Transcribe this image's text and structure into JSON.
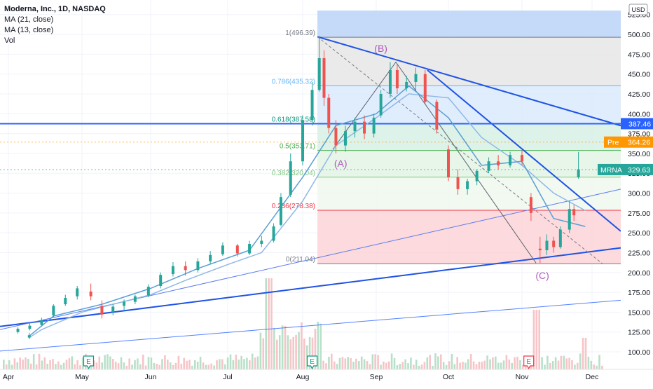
{
  "legend": {
    "title": "Moderna, Inc., 1D, NASDAQ",
    "ma21": "MA (21, close)",
    "ma13": "MA (13, close)",
    "vol": "Vol"
  },
  "currency": "USD",
  "chart_data": {
    "type": "candlestick",
    "symbol": "MRNA",
    "y_ticks": [
      100,
      125,
      150,
      175,
      200,
      225,
      250,
      275,
      300,
      325,
      350,
      375,
      400,
      425,
      450,
      475,
      500,
      525
    ],
    "x_ticks": [
      "Apr",
      "May",
      "Jun",
      "Jul",
      "Aug",
      "Sep",
      "Oct",
      "Nov",
      "Dec"
    ],
    "last_price": {
      "label": "MRNA",
      "value": "329.63",
      "color": "#26a69a"
    },
    "premarket": {
      "label": "Pre",
      "value": "364.26",
      "color": "#ff9800"
    },
    "horizontal_line": {
      "value": 387.46,
      "label": "387.46",
      "color": "#2962ff"
    },
    "fib_retracement": {
      "levels": [
        {
          "ratio": "1",
          "price": "496.39",
          "label": "1(496.39)",
          "color": "#787b86"
        },
        {
          "ratio": "0.786",
          "price": "435.32",
          "label": "0.786(435.32)",
          "color": "#64b5f6"
        },
        {
          "ratio": "0.618",
          "price": "387.58",
          "label": "0.618(387.58)",
          "color": "#089981"
        },
        {
          "ratio": "0.5",
          "price": "353.71",
          "label": "0.5(353.71)",
          "color": "#4caf50"
        },
        {
          "ratio": "0.382",
          "price": "320.04",
          "label": "0.382(320.04)",
          "color": "#81c784"
        },
        {
          "ratio": "0.236",
          "price": "278.38",
          "label": "0.236(278.38)",
          "color": "#f23645"
        },
        {
          "ratio": "0",
          "price": "211.04",
          "label": "0(211.04)",
          "color": "#787b86"
        }
      ]
    },
    "wave_labels": [
      {
        "text": "(A)",
        "x": "Aug 17",
        "y": 333
      },
      {
        "text": "(B)",
        "x": "Sep 3",
        "y": 478
      },
      {
        "text": "(C)",
        "x": "Nov 10",
        "y": 192
      }
    ],
    "earnings_markers": [
      {
        "x": "May 4",
        "label": "E",
        "color": "#089981"
      },
      {
        "x": "Aug 5",
        "label": "E",
        "color": "#089981"
      },
      {
        "x": "Nov 4",
        "label": "E",
        "color": "#f23645"
      }
    ],
    "series": [
      {
        "name": "MRNA",
        "type": "ohlc",
        "points": [
          {
            "d": "Mar 31",
            "o": 118,
            "h": 124,
            "l": 116,
            "c": 121
          },
          {
            "d": "Apr 5",
            "o": 125,
            "h": 131,
            "l": 123,
            "c": 129
          },
          {
            "d": "Apr 10",
            "o": 129,
            "h": 137,
            "l": 127,
            "c": 133
          },
          {
            "d": "Apr 15",
            "o": 134,
            "h": 143,
            "l": 132,
            "c": 140
          },
          {
            "d": "Apr 20",
            "o": 146,
            "h": 160,
            "l": 144,
            "c": 158
          },
          {
            "d": "Apr 25",
            "o": 160,
            "h": 172,
            "l": 158,
            "c": 168
          },
          {
            "d": "Apr 30",
            "o": 170,
            "h": 183,
            "l": 166,
            "c": 180
          },
          {
            "d": "May 5",
            "o": 176,
            "h": 186,
            "l": 165,
            "c": 170
          },
          {
            "d": "May 10",
            "o": 158,
            "h": 165,
            "l": 142,
            "c": 147
          },
          {
            "d": "May 15",
            "o": 150,
            "h": 160,
            "l": 146,
            "c": 157
          },
          {
            "d": "May 20",
            "o": 158,
            "h": 166,
            "l": 152,
            "c": 163
          },
          {
            "d": "May 25",
            "o": 163,
            "h": 172,
            "l": 160,
            "c": 170
          },
          {
            "d": "May 31",
            "o": 171,
            "h": 185,
            "l": 169,
            "c": 182
          },
          {
            "d": "Jun 5",
            "o": 183,
            "h": 200,
            "l": 180,
            "c": 197
          },
          {
            "d": "Jun 10",
            "o": 198,
            "h": 213,
            "l": 195,
            "c": 208
          },
          {
            "d": "Jun 15",
            "o": 208,
            "h": 214,
            "l": 196,
            "c": 203
          },
          {
            "d": "Jun 20",
            "o": 203,
            "h": 218,
            "l": 200,
            "c": 214
          },
          {
            "d": "Jun 25",
            "o": 214,
            "h": 227,
            "l": 210,
            "c": 222
          },
          {
            "d": "Jun 30",
            "o": 223,
            "h": 238,
            "l": 221,
            "c": 234
          },
          {
            "d": "Jul 5",
            "o": 234,
            "h": 236,
            "l": 220,
            "c": 224
          },
          {
            "d": "Jul 10",
            "o": 224,
            "h": 240,
            "l": 222,
            "c": 236
          },
          {
            "d": "Jul 15",
            "o": 236,
            "h": 246,
            "l": 232,
            "c": 240
          },
          {
            "d": "Jul 20",
            "o": 240,
            "h": 262,
            "l": 238,
            "c": 258
          },
          {
            "d": "Jul 23",
            "o": 260,
            "h": 300,
            "l": 258,
            "c": 295
          },
          {
            "d": "Jul 27",
            "o": 298,
            "h": 350,
            "l": 295,
            "c": 340
          },
          {
            "d": "Aug 1",
            "o": 340,
            "h": 398,
            "l": 335,
            "c": 392
          },
          {
            "d": "Aug 5",
            "o": 392,
            "h": 440,
            "l": 385,
            "c": 430
          },
          {
            "d": "Aug 8",
            "o": 430,
            "h": 498,
            "l": 428,
            "c": 470
          },
          {
            "d": "Aug 10",
            "o": 470,
            "h": 480,
            "l": 410,
            "c": 420
          },
          {
            "d": "Aug 12",
            "o": 420,
            "h": 425,
            "l": 375,
            "c": 382
          },
          {
            "d": "Aug 15",
            "o": 382,
            "h": 392,
            "l": 350,
            "c": 360
          },
          {
            "d": "Aug 19",
            "o": 360,
            "h": 385,
            "l": 352,
            "c": 378
          },
          {
            "d": "Aug 23",
            "o": 378,
            "h": 395,
            "l": 370,
            "c": 390
          },
          {
            "d": "Aug 27",
            "o": 390,
            "h": 398,
            "l": 368,
            "c": 375
          },
          {
            "d": "Aug 31",
            "o": 375,
            "h": 400,
            "l": 370,
            "c": 395
          },
          {
            "d": "Sep 3",
            "o": 398,
            "h": 430,
            "l": 395,
            "c": 425
          },
          {
            "d": "Sep 7",
            "o": 425,
            "h": 465,
            "l": 420,
            "c": 455
          },
          {
            "d": "Sep 10",
            "o": 455,
            "h": 462,
            "l": 425,
            "c": 432
          },
          {
            "d": "Sep 14",
            "o": 432,
            "h": 448,
            "l": 428,
            "c": 440
          },
          {
            "d": "Sep 18",
            "o": 440,
            "h": 458,
            "l": 430,
            "c": 450
          },
          {
            "d": "Sep 22",
            "o": 450,
            "h": 455,
            "l": 412,
            "c": 415
          },
          {
            "d": "Sep 27",
            "o": 415,
            "h": 418,
            "l": 375,
            "c": 380
          },
          {
            "d": "Oct 1",
            "o": 355,
            "h": 360,
            "l": 315,
            "c": 320
          },
          {
            "d": "Oct 5",
            "o": 320,
            "h": 330,
            "l": 298,
            "c": 305
          },
          {
            "d": "Oct 9",
            "o": 305,
            "h": 318,
            "l": 298,
            "c": 315
          },
          {
            "d": "Oct 13",
            "o": 315,
            "h": 330,
            "l": 310,
            "c": 328
          },
          {
            "d": "Oct 18",
            "o": 328,
            "h": 345,
            "l": 325,
            "c": 340
          },
          {
            "d": "Oct 22",
            "o": 340,
            "h": 348,
            "l": 330,
            "c": 335
          },
          {
            "d": "Oct 27",
            "o": 335,
            "h": 352,
            "l": 332,
            "c": 348
          },
          {
            "d": "Nov 1",
            "o": 348,
            "h": 354,
            "l": 335,
            "c": 340
          },
          {
            "d": "Nov 5",
            "o": 295,
            "h": 300,
            "l": 265,
            "c": 275
          },
          {
            "d": "Nov 9",
            "o": 230,
            "h": 245,
            "l": 212,
            "c": 228
          },
          {
            "d": "Nov 12",
            "o": 228,
            "h": 248,
            "l": 222,
            "c": 240
          },
          {
            "d": "Nov 15",
            "o": 240,
            "h": 245,
            "l": 225,
            "c": 232
          },
          {
            "d": "Nov 18",
            "o": 232,
            "h": 258,
            "l": 230,
            "c": 254
          },
          {
            "d": "Nov 22",
            "o": 254,
            "h": 290,
            "l": 250,
            "c": 280
          },
          {
            "d": "Nov 24",
            "o": 280,
            "h": 285,
            "l": 265,
            "c": 272
          },
          {
            "d": "Nov 26",
            "o": 320,
            "h": 352,
            "l": 318,
            "c": 330
          }
        ]
      },
      {
        "name": "MA (21, close)",
        "color": "#90b8e8",
        "points": [
          {
            "d": "Mar 31",
            "v": 118
          },
          {
            "d": "Apr 15",
            "v": 128
          },
          {
            "d": "May 1",
            "v": 150
          },
          {
            "d": "May 15",
            "v": 160
          },
          {
            "d": "Jun 1",
            "v": 172
          },
          {
            "d": "Jun 15",
            "v": 190
          },
          {
            "d": "Jul 1",
            "v": 210
          },
          {
            "d": "Jul 15",
            "v": 225
          },
          {
            "d": "Aug 1",
            "v": 290
          },
          {
            "d": "Aug 15",
            "v": 360
          },
          {
            "d": "Sep 1",
            "v": 395
          },
          {
            "d": "Sep 15",
            "v": 425
          },
          {
            "d": "Oct 1",
            "v": 420
          },
          {
            "d": "Oct 15",
            "v": 370
          },
          {
            "d": "Nov 1",
            "v": 335
          },
          {
            "d": "Nov 15",
            "v": 300
          },
          {
            "d": "Nov 29",
            "v": 278
          }
        ]
      },
      {
        "name": "MA (13, close)",
        "color": "#5a9fd4",
        "points": [
          {
            "d": "Mar 31",
            "v": 120
          },
          {
            "d": "Apr 20",
            "v": 145
          },
          {
            "d": "May 10",
            "v": 160
          },
          {
            "d": "Jun 1",
            "v": 180
          },
          {
            "d": "Jun 20",
            "v": 205
          },
          {
            "d": "Jul 10",
            "v": 228
          },
          {
            "d": "Aug 1",
            "v": 320
          },
          {
            "d": "Aug 15",
            "v": 385
          },
          {
            "d": "Sep 1",
            "v": 400
          },
          {
            "d": "Sep 15",
            "v": 435
          },
          {
            "d": "Oct 1",
            "v": 395
          },
          {
            "d": "Oct 15",
            "v": 335
          },
          {
            "d": "Nov 1",
            "v": 340
          },
          {
            "d": "Nov 15",
            "v": 268
          },
          {
            "d": "Nov 29",
            "v": 258
          }
        ]
      }
    ],
    "volume": {
      "name": "Vol",
      "unit": "relative"
    }
  }
}
